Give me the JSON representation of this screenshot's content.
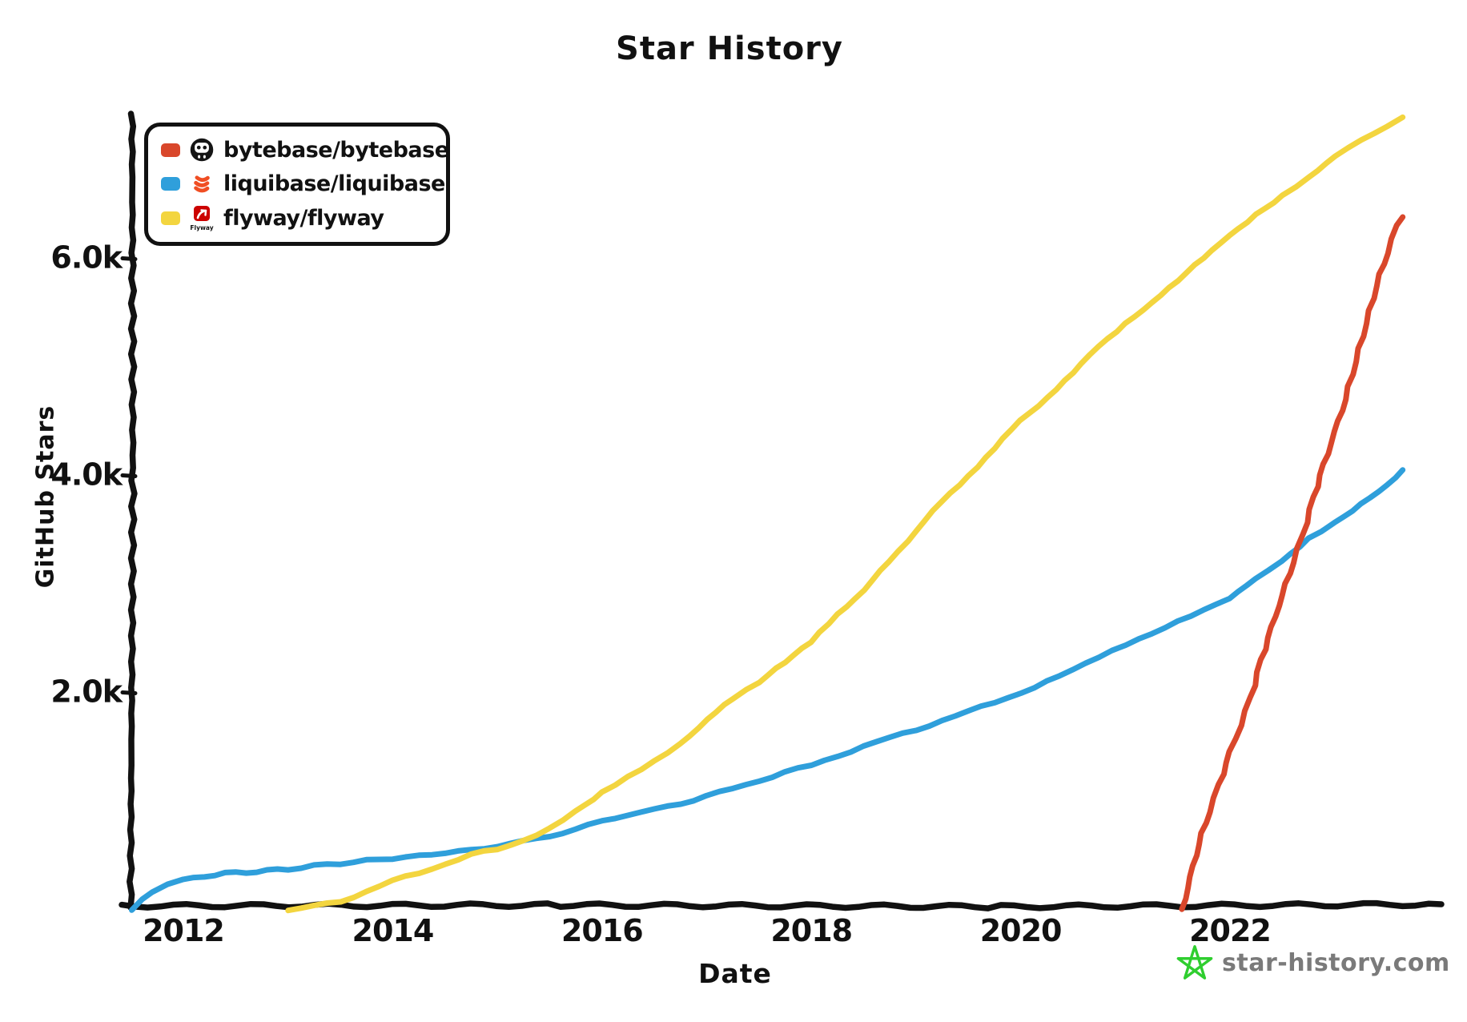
{
  "title": "Star History",
  "legend": {
    "items": [
      {
        "label": "bytebase/bytebase",
        "swatch_color": "#D9472B",
        "icon": "bytebase-logo"
      },
      {
        "label": "liquibase/liquibase",
        "swatch_color": "#2F9FDB",
        "icon": "liquibase-logo"
      },
      {
        "label": "flyway/flyway",
        "swatch_color": "#F3D53F",
        "icon": "flyway-logo"
      }
    ]
  },
  "watermark": {
    "text": "star-history.com",
    "icon": "star-icon",
    "star_color": "#2FCE2F",
    "text_color": "#7a7a7a"
  },
  "chart_data": {
    "type": "line",
    "title": "Star History",
    "xlabel": "Date",
    "ylabel": "GitHub Stars",
    "x_ticks": [
      2012,
      2014,
      2016,
      2018,
      2020,
      2022
    ],
    "x_tick_labels": [
      "2012",
      "2014",
      "2016",
      "2018",
      "2020",
      "2022"
    ],
    "y_ticks": [
      2000,
      4000,
      6000
    ],
    "y_tick_labels": [
      "2.0k",
      "4.0k",
      "6.0k"
    ],
    "xlim": [
      2011.4,
      2023.9
    ],
    "ylim": [
      0,
      7450
    ],
    "grid": false,
    "legend_position": "top-left",
    "series": [
      {
        "name": "bytebase/bytebase",
        "color": "#D9472B",
        "points": [
          [
            2021.55,
            0
          ],
          [
            2021.62,
            300
          ],
          [
            2021.7,
            600
          ],
          [
            2021.8,
            900
          ],
          [
            2021.9,
            1150
          ],
          [
            2022.0,
            1450
          ],
          [
            2022.1,
            1700
          ],
          [
            2022.2,
            1950
          ],
          [
            2022.3,
            2300
          ],
          [
            2022.4,
            2600
          ],
          [
            2022.5,
            2900
          ],
          [
            2022.6,
            3200
          ],
          [
            2022.7,
            3450
          ],
          [
            2022.8,
            3800
          ],
          [
            2022.9,
            4100
          ],
          [
            2023.0,
            4400
          ],
          [
            2023.1,
            4700
          ],
          [
            2023.2,
            5050
          ],
          [
            2023.3,
            5400
          ],
          [
            2023.4,
            5750
          ],
          [
            2023.5,
            6050
          ],
          [
            2023.6,
            6300
          ],
          [
            2023.65,
            6380
          ]
        ]
      },
      {
        "name": "liquibase/liquibase",
        "color": "#2F9FDB",
        "points": [
          [
            2011.5,
            0
          ],
          [
            2011.6,
            100
          ],
          [
            2011.7,
            170
          ],
          [
            2011.85,
            230
          ],
          [
            2012.0,
            270
          ],
          [
            2012.2,
            310
          ],
          [
            2012.4,
            330
          ],
          [
            2012.6,
            345
          ],
          [
            2012.8,
            355
          ],
          [
            2013.0,
            375
          ],
          [
            2013.25,
            400
          ],
          [
            2013.5,
            425
          ],
          [
            2013.75,
            450
          ],
          [
            2014.0,
            470
          ],
          [
            2014.25,
            495
          ],
          [
            2014.5,
            520
          ],
          [
            2014.75,
            550
          ],
          [
            2015.0,
            580
          ],
          [
            2015.25,
            630
          ],
          [
            2015.5,
            680
          ],
          [
            2015.75,
            730
          ],
          [
            2016.0,
            820
          ],
          [
            2016.25,
            870
          ],
          [
            2016.5,
            920
          ],
          [
            2016.75,
            980
          ],
          [
            2017.0,
            1040
          ],
          [
            2017.25,
            1115
          ],
          [
            2017.5,
            1190
          ],
          [
            2017.75,
            1260
          ],
          [
            2018.0,
            1330
          ],
          [
            2018.25,
            1420
          ],
          [
            2018.5,
            1500
          ],
          [
            2018.75,
            1580
          ],
          [
            2019.0,
            1660
          ],
          [
            2019.25,
            1740
          ],
          [
            2019.5,
            1820
          ],
          [
            2019.75,
            1910
          ],
          [
            2020.0,
            2000
          ],
          [
            2020.25,
            2100
          ],
          [
            2020.5,
            2200
          ],
          [
            2020.75,
            2320
          ],
          [
            2021.0,
            2440
          ],
          [
            2021.25,
            2550
          ],
          [
            2021.5,
            2660
          ],
          [
            2021.75,
            2750
          ],
          [
            2022.0,
            2860
          ],
          [
            2022.25,
            3040
          ],
          [
            2022.5,
            3200
          ],
          [
            2022.75,
            3420
          ],
          [
            2023.0,
            3560
          ],
          [
            2023.25,
            3740
          ],
          [
            2023.5,
            3920
          ],
          [
            2023.65,
            4050
          ]
        ]
      },
      {
        "name": "flyway/flyway",
        "color": "#F3D53F",
        "points": [
          [
            2013.0,
            0
          ],
          [
            2013.25,
            30
          ],
          [
            2013.5,
            80
          ],
          [
            2013.75,
            160
          ],
          [
            2014.0,
            260
          ],
          [
            2014.25,
            340
          ],
          [
            2014.5,
            420
          ],
          [
            2014.75,
            500
          ],
          [
            2015.0,
            560
          ],
          [
            2015.25,
            640
          ],
          [
            2015.5,
            740
          ],
          [
            2015.75,
            900
          ],
          [
            2016.0,
            1080
          ],
          [
            2016.25,
            1220
          ],
          [
            2016.5,
            1360
          ],
          [
            2016.75,
            1520
          ],
          [
            2017.0,
            1760
          ],
          [
            2017.25,
            1950
          ],
          [
            2017.5,
            2100
          ],
          [
            2017.75,
            2280
          ],
          [
            2018.0,
            2460
          ],
          [
            2018.25,
            2720
          ],
          [
            2018.5,
            2950
          ],
          [
            2018.75,
            3200
          ],
          [
            2019.0,
            3500
          ],
          [
            2019.25,
            3750
          ],
          [
            2019.5,
            4000
          ],
          [
            2019.75,
            4250
          ],
          [
            2020.0,
            4500
          ],
          [
            2020.25,
            4720
          ],
          [
            2020.5,
            4950
          ],
          [
            2020.75,
            5180
          ],
          [
            2021.0,
            5400
          ],
          [
            2021.25,
            5600
          ],
          [
            2021.5,
            5800
          ],
          [
            2021.75,
            6000
          ],
          [
            2022.0,
            6200
          ],
          [
            2022.25,
            6400
          ],
          [
            2022.5,
            6580
          ],
          [
            2022.75,
            6750
          ],
          [
            2023.0,
            6950
          ],
          [
            2023.25,
            7100
          ],
          [
            2023.5,
            7220
          ],
          [
            2023.65,
            7300
          ]
        ]
      }
    ]
  }
}
